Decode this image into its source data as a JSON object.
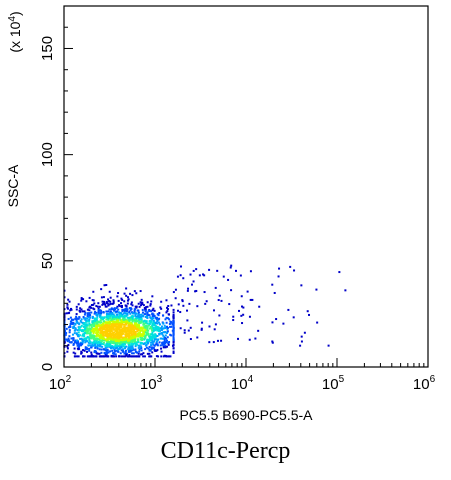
{
  "caption": "CD11c-Percp",
  "chart_data": {
    "type": "scatter",
    "title": "",
    "xlabel": "PC5.5 B690-PC5.5-A",
    "ylabel": "SSC-A",
    "y_scale_label_base": "(x 10",
    "y_scale_label_exp": "4",
    "y_scale_label_end": ")",
    "x_scale": "log",
    "xlim": [
      100,
      1000000
    ],
    "ylim": [
      0,
      170
    ],
    "x_ticks": [
      {
        "base": "10",
        "exp": "2",
        "value": 100
      },
      {
        "base": "10",
        "exp": "3",
        "value": 1000
      },
      {
        "base": "10",
        "exp": "4",
        "value": 10000
      },
      {
        "base": "10",
        "exp": "5",
        "value": 100000
      },
      {
        "base": "10",
        "exp": "6",
        "value": 1000000
      }
    ],
    "y_ticks": [
      {
        "label": "0",
        "value": 0
      },
      {
        "label": "50",
        "value": 50
      },
      {
        "label": "100",
        "value": 100
      },
      {
        "label": "150",
        "value": 150
      }
    ],
    "grid": false,
    "colormap": [
      "#0000c8",
      "#0050ff",
      "#00a0ff",
      "#00e0e0",
      "#40ff80",
      "#c8ff00",
      "#ffd000"
    ],
    "population": {
      "core_center": {
        "x": 400,
        "y": 17
      },
      "core_x_range": [
        100,
        1600
      ],
      "core_y_range": [
        5,
        45
      ],
      "sparse_x_range": [
        1600,
        160000
      ],
      "sparse_y_range": [
        10,
        48
      ]
    }
  }
}
